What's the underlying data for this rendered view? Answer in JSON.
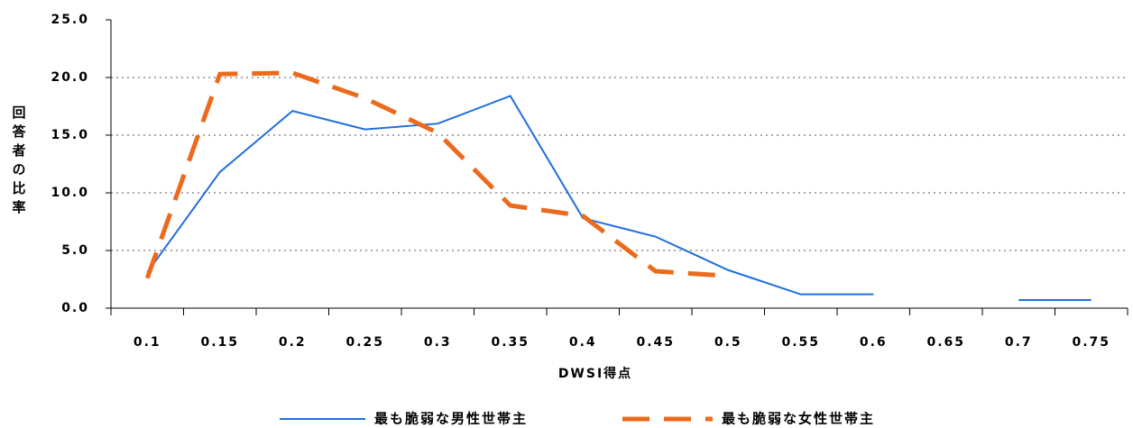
{
  "chart_data": {
    "type": "line",
    "y_label": "回答者の比率",
    "x_label": "DWSI得点",
    "categories": [
      "0.1",
      "0.15",
      "0.2",
      "0.25",
      "0.3",
      "0.35",
      "0.4",
      "0.45",
      "0.5",
      "0.55",
      "0.6",
      "0.65",
      "0.7",
      "0.75"
    ],
    "series": [
      {
        "name": "最も脆弱な男性世帯主",
        "color": "#1f6fe0",
        "values": [
          3.1,
          11.8,
          17.1,
          15.5,
          16.0,
          18.4,
          7.8,
          6.2,
          3.3,
          1.2,
          1.2,
          null,
          0.7,
          0.7
        ]
      },
      {
        "name": "最も脆弱な女性世帯主",
        "color": "#ec6a1c",
        "values": [
          2.6,
          20.3,
          20.4,
          18.2,
          15.2,
          8.9,
          8.0,
          3.2,
          2.8,
          null,
          null,
          null,
          null,
          null
        ]
      }
    ],
    "ylim": [
      0,
      25
    ],
    "yticks": [
      {
        "value": 0,
        "label": "0.0"
      },
      {
        "value": 5,
        "label": "5.0"
      },
      {
        "value": 10,
        "label": "10.0"
      },
      {
        "value": 15,
        "label": "15.0"
      },
      {
        "value": 20,
        "label": "20.0"
      },
      {
        "value": 25,
        "label": "25.0"
      }
    ],
    "grid": true
  }
}
